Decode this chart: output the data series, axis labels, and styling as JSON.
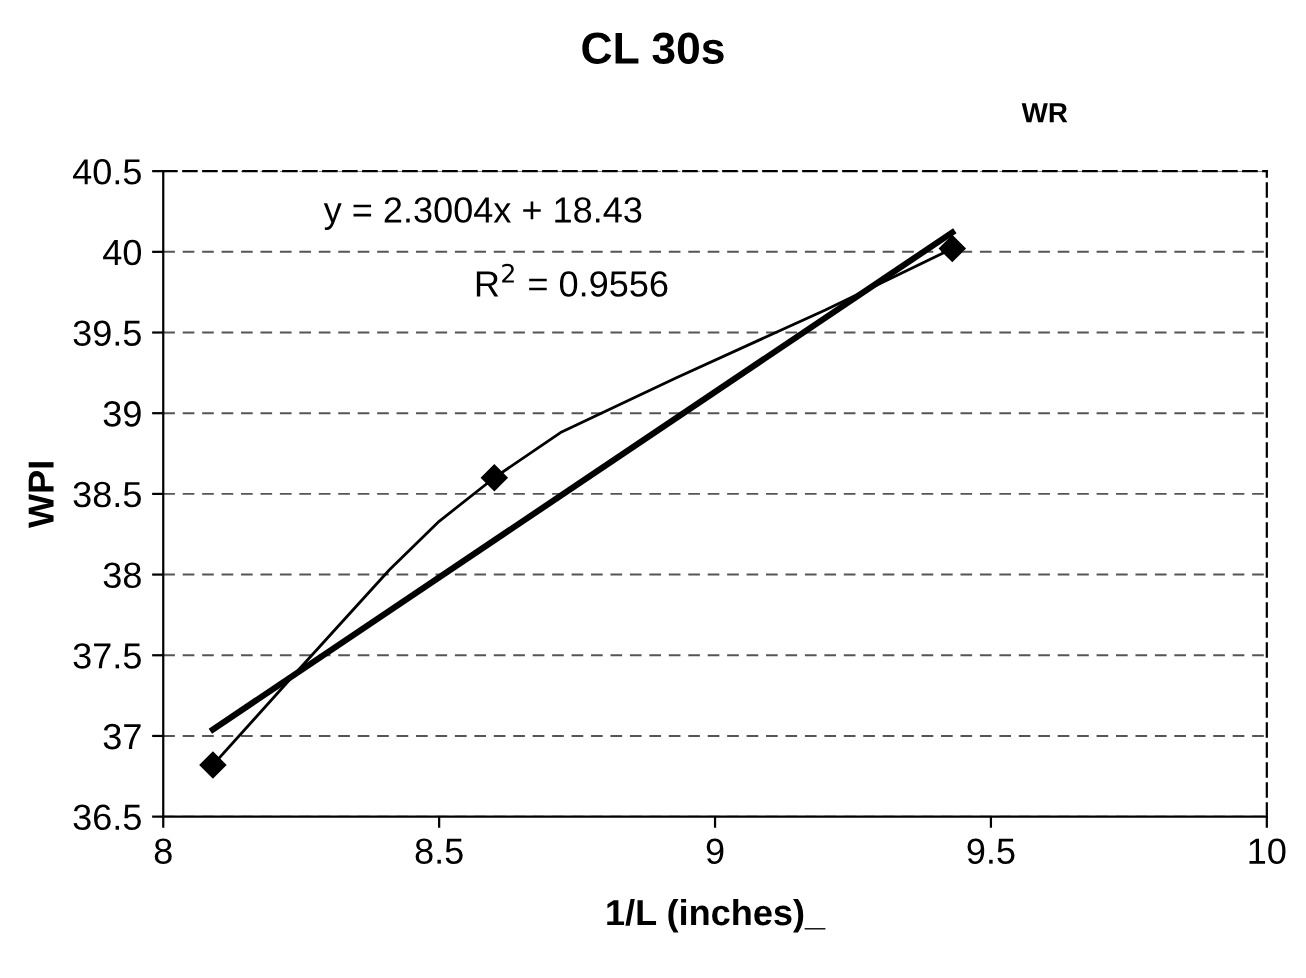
{
  "chart_data": {
    "type": "line",
    "title": "CL 30s",
    "subtitle": "WR",
    "xlabel": "1/L (inches)_",
    "ylabel": "WPI",
    "series": [
      {
        "type": "scatter",
        "color": "#000000",
        "marker": "diamond",
        "x": [
          8.09,
          8.6,
          9.43
        ],
        "values": [
          36.82,
          38.6,
          40.02
        ]
      },
      {
        "color": "#000000",
        "marker": "none",
        "x": [
          8.09,
          8.24,
          8.41,
          8.5,
          8.6,
          8.72,
          8.93,
          9.2,
          9.43
        ],
        "values": [
          36.82,
          37.39,
          38.03,
          38.33,
          38.6,
          38.88,
          39.22,
          39.64,
          40.02
        ]
      },
      {
        "color": "#000000",
        "marker": "none",
        "x": [
          8.09,
          9.43
        ],
        "values": [
          37.04,
          40.12
        ]
      }
    ],
    "annotations": [
      "y = 2.3004x + 18.43",
      "R$^{2}$ = 0.9556"
    ],
    "xlim": [
      8,
      10
    ],
    "xticks": [
      8,
      8.5,
      9,
      9.5,
      10
    ],
    "ylim": [
      36.5,
      40.5
    ],
    "yticks": [
      36.5,
      37,
      37.5,
      38,
      38.5,
      39,
      39.5,
      40,
      40.5
    ],
    "grid": "y",
    "legend": false
  }
}
